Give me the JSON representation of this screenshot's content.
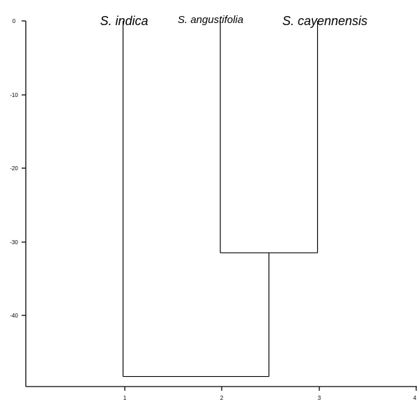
{
  "chart_data": {
    "type": "dendrogram",
    "taxa": [
      {
        "name": "S. indica",
        "x": 1
      },
      {
        "name": "S. angustifolia",
        "x": 2
      },
      {
        "name": "S. cayennensis",
        "x": 3
      }
    ],
    "merges": [
      {
        "left": "S. angustifolia",
        "right": "S. cayennensis",
        "height": -31.5
      },
      {
        "left": "S. indica",
        "right": "S. angustifolia + S. cayennensis",
        "height": -48.3
      }
    ],
    "y_ticks": [
      "0",
      "-10",
      "-20",
      "-30",
      "-40"
    ],
    "x_ticks": [
      "1",
      "2",
      "3",
      "4"
    ],
    "xlim": [
      0,
      4
    ],
    "ylim": [
      -49.5,
      0
    ],
    "grid": false
  }
}
